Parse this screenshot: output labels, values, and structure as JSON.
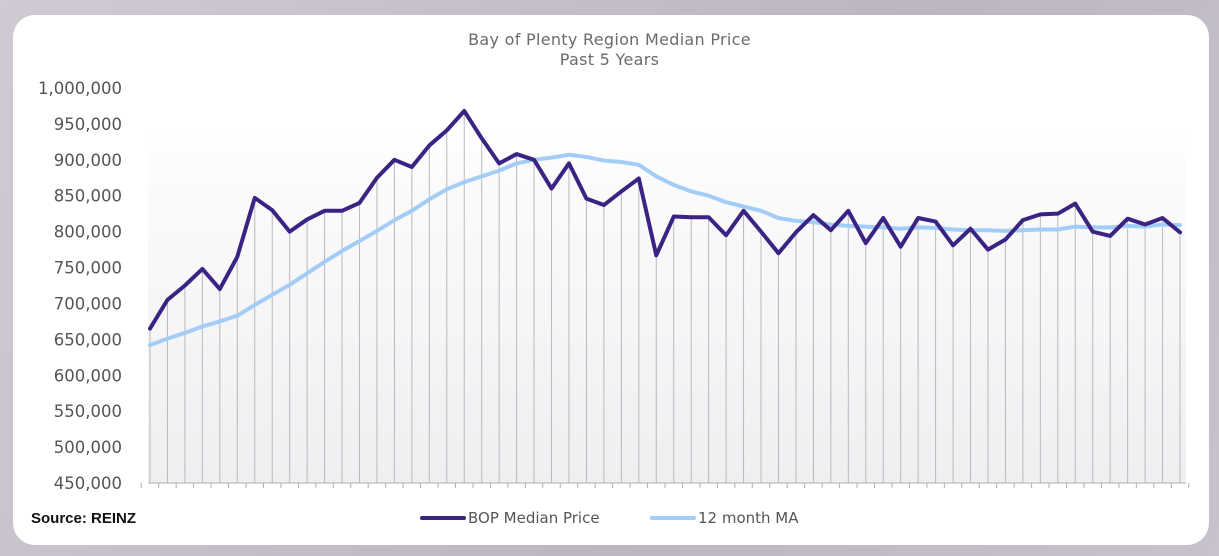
{
  "chart_data": {
    "type": "line",
    "title": "Bay of Plenty Region Median Price",
    "subtitle": "Past 5 Years",
    "ylim": [
      450000,
      1000000
    ],
    "yticks": [
      1000000,
      950000,
      900000,
      850000,
      800000,
      750000,
      700000,
      650000,
      600000,
      550000,
      500000,
      450000
    ],
    "ytick_labels": [
      "1,000,000",
      "950,000",
      "900,000",
      "850,000",
      "800,000",
      "750,000",
      "700,000",
      "650,000",
      "600,000",
      "550,000",
      "500,000",
      "450,000"
    ],
    "grid": false,
    "legend_position": "bottom",
    "series": [
      {
        "name": "BOP Median Price",
        "color": "#3a2383",
        "values": [
          665000,
          705000,
          725000,
          748000,
          720000,
          765000,
          847000,
          830000,
          800000,
          817000,
          829000,
          829000,
          840000,
          875000,
          900000,
          890000,
          920000,
          941000,
          968000,
          930000,
          895000,
          908000,
          900000,
          860000,
          895000,
          846000,
          837000,
          856000,
          874000,
          767000,
          821000,
          820000,
          820000,
          795000,
          829000,
          800000,
          770000,
          799000,
          823000,
          802000,
          829000,
          784000,
          819000,
          779000,
          819000,
          814000,
          781000,
          804000,
          775000,
          789000,
          816000,
          824000,
          825000,
          839000,
          800000,
          794000,
          818000,
          810000,
          819000,
          799000
        ]
      },
      {
        "name": "12 month MA",
        "color": "#a3cdf7",
        "values": [
          642000,
          651000,
          659000,
          668000,
          675000,
          683000,
          698000,
          712000,
          726000,
          742000,
          758000,
          773000,
          787000,
          801000,
          816000,
          829000,
          845000,
          859000,
          869000,
          877000,
          885000,
          895000,
          900000,
          903000,
          907000,
          904000,
          899000,
          897000,
          893000,
          877000,
          865000,
          856000,
          850000,
          841000,
          835000,
          829000,
          819000,
          815000,
          813000,
          810000,
          808000,
          807000,
          806000,
          804000,
          806000,
          805000,
          803000,
          802000,
          802000,
          801000,
          802000,
          803000,
          803000,
          807000,
          806000,
          806000,
          808000,
          807000,
          810000,
          809000
        ]
      }
    ]
  },
  "source": "Source: REINZ"
}
